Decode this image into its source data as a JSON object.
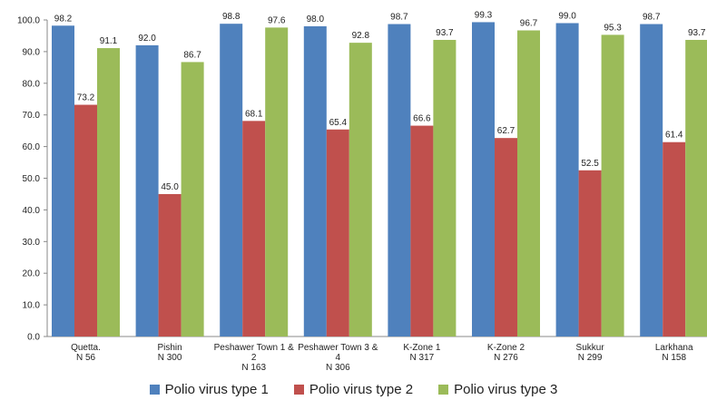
{
  "chart_data": {
    "type": "bar",
    "categories": [
      [
        "Quetta.",
        "N 56"
      ],
      [
        "Pishin",
        "N 300"
      ],
      [
        "Peshawer Town 1 &",
        "2",
        "N 163"
      ],
      [
        "Peshawer Town 3 &",
        "4",
        "N 306"
      ],
      [
        "K-Zone 1",
        "N 317"
      ],
      [
        "K-Zone 2",
        "N 276"
      ],
      [
        "Sukkur",
        "N 299"
      ],
      [
        "Larkhana",
        "N 158"
      ]
    ],
    "series": [
      {
        "name": "Polio virus type 1",
        "color": "#4f81bd",
        "values": [
          98.2,
          92.0,
          98.8,
          98.0,
          98.7,
          99.3,
          99.0,
          98.7
        ],
        "labels": [
          "98.2",
          "92.0",
          "98.8",
          "98.0",
          "98.7",
          "99.3",
          "99.0",
          "98.7"
        ]
      },
      {
        "name": "Polio virus type 2",
        "color": "#c0504d",
        "values": [
          73.2,
          45.0,
          68.1,
          65.4,
          66.6,
          62.7,
          52.5,
          61.4
        ],
        "labels": [
          "73.2",
          "45.0",
          "68.1",
          "65.4",
          "66.6",
          "62.7",
          "52.5",
          "61.4"
        ]
      },
      {
        "name": "Polio virus type 3",
        "color": "#9bbb59",
        "values": [
          91.1,
          86.7,
          97.6,
          92.8,
          93.7,
          96.7,
          95.3,
          93.7
        ],
        "labels": [
          "91.1",
          "86.7",
          "97.6",
          "92.8",
          "93.7",
          "96.7",
          "95.3",
          "93.7"
        ]
      }
    ],
    "yticks": [
      "0.0",
      "10.0",
      "20.0",
      "30.0",
      "40.0",
      "50.0",
      "60.0",
      "70.0",
      "80.0",
      "90.0",
      "100.0"
    ],
    "ylim": [
      0,
      100
    ],
    "grid": false,
    "legend": "bottom"
  }
}
